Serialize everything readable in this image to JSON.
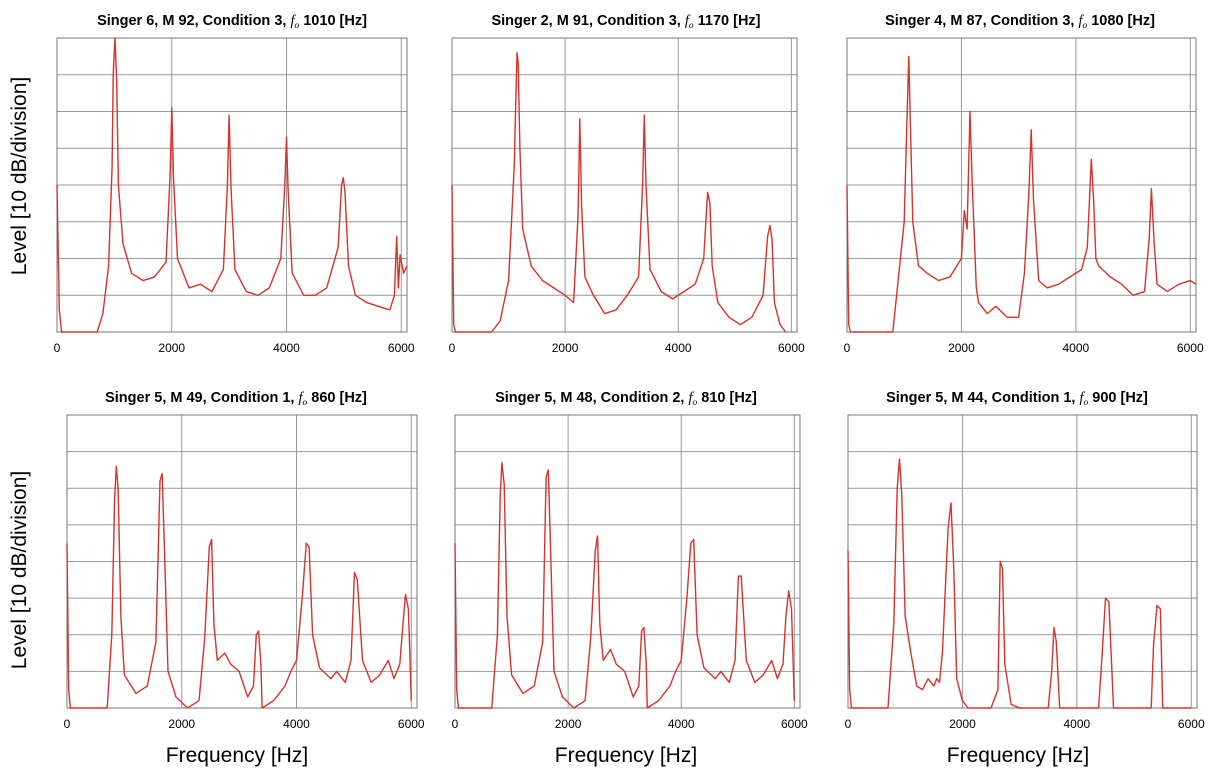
{
  "figure": {
    "ylabel": "Level [10 dB/division]",
    "xlabel": "Frequency [Hz]",
    "line_color": "#d9312b",
    "grid_color": "#999999"
  },
  "chart_data": [
    {
      "type": "line",
      "title": "Singer 6, M 92, Condition 3,",
      "title_f": "fo",
      "title_suffix": " 1010 [Hz]",
      "xlabel": "",
      "ylabel": "Level [10 dB/division]",
      "xlim": [
        0,
        6100
      ],
      "xticks": [
        0,
        2000,
        4000,
        6000
      ],
      "ylim": [
        0,
        8
      ],
      "grid": true,
      "series": [
        {
          "x": [
            0,
            40,
            80,
            700,
            800,
            900,
            960,
            980,
            1010,
            1040,
            1070,
            1150,
            1300,
            1500,
            1700,
            1900,
            1970,
            2000,
            2030,
            2100,
            2300,
            2500,
            2700,
            2900,
            2970,
            3000,
            3030,
            3100,
            3300,
            3500,
            3700,
            3900,
            3970,
            4000,
            4030,
            4100,
            4300,
            4500,
            4700,
            4900,
            4960,
            4990,
            5020,
            5080,
            5200,
            5400,
            5600,
            5800,
            5880,
            5920,
            5950,
            5980,
            6040,
            6100
          ],
          "y": [
            4.0,
            0.6,
            0.0,
            0.0,
            0.5,
            1.8,
            4.5,
            7.0,
            8.0,
            6.8,
            4.0,
            2.4,
            1.6,
            1.4,
            1.5,
            1.9,
            4.2,
            6.1,
            4.2,
            2.0,
            1.2,
            1.3,
            1.1,
            1.7,
            4.0,
            5.9,
            4.0,
            1.7,
            1.1,
            1.0,
            1.2,
            2.0,
            4.0,
            5.3,
            3.8,
            1.6,
            1.0,
            1.0,
            1.2,
            2.3,
            4.0,
            4.2,
            3.8,
            1.8,
            1.0,
            0.8,
            0.7,
            0.6,
            1.0,
            2.6,
            1.2,
            2.1,
            1.6,
            1.8
          ]
        }
      ]
    },
    {
      "type": "line",
      "title": "Singer 2, M 91, Condition 3,",
      "title_f": "fo",
      "title_suffix": " 1170 [Hz]",
      "xlabel": "",
      "ylabel": "Level [10 dB/division]",
      "xlim": [
        0,
        6100
      ],
      "xticks": [
        0,
        2000,
        4000,
        6000
      ],
      "ylim": [
        0,
        8
      ],
      "grid": true,
      "series": [
        {
          "x": [
            0,
            30,
            60,
            700,
            850,
            1000,
            1100,
            1150,
            1170,
            1200,
            1250,
            1400,
            1600,
            1800,
            2000,
            2150,
            2230,
            2260,
            2290,
            2350,
            2500,
            2700,
            2900,
            3100,
            3300,
            3370,
            3400,
            3430,
            3500,
            3700,
            3900,
            4100,
            4300,
            4450,
            4520,
            4560,
            4600,
            4700,
            4900,
            5100,
            5300,
            5500,
            5580,
            5620,
            5660,
            5700,
            5800,
            5900
          ],
          "y": [
            4.0,
            0.2,
            0.0,
            0.0,
            0.3,
            1.4,
            4.5,
            7.6,
            7.3,
            5.0,
            2.8,
            1.8,
            1.4,
            1.2,
            1.0,
            0.8,
            3.2,
            5.8,
            3.5,
            1.5,
            1.0,
            0.5,
            0.6,
            1.0,
            1.5,
            4.0,
            5.9,
            4.0,
            1.7,
            1.1,
            0.9,
            1.1,
            1.3,
            2.0,
            3.8,
            3.5,
            1.8,
            0.8,
            0.4,
            0.2,
            0.4,
            1.0,
            2.6,
            2.9,
            2.5,
            0.8,
            0.2,
            0.0
          ]
        }
      ]
    },
    {
      "type": "line",
      "title": "Singer 4, M 87, Condition 3,",
      "title_f": "fo",
      "title_suffix": " 1080 [Hz]",
      "xlabel": "",
      "ylabel": "Level [10 dB/division]",
      "xlim": [
        0,
        6100
      ],
      "xticks": [
        0,
        2000,
        4000,
        6000
      ],
      "ylim": [
        0,
        8
      ],
      "grid": true,
      "series": [
        {
          "x": [
            0,
            30,
            60,
            800,
            900,
            1000,
            1060,
            1080,
            1110,
            1150,
            1250,
            1400,
            1600,
            1800,
            2000,
            2050,
            2100,
            2150,
            2190,
            2260,
            2300,
            2450,
            2600,
            2800,
            3000,
            3100,
            3180,
            3220,
            3260,
            3350,
            3500,
            3700,
            3900,
            4100,
            4200,
            4270,
            4310,
            4350,
            4400,
            4600,
            4800,
            5000,
            5200,
            5280,
            5320,
            5370,
            5420,
            5600,
            5800,
            6000,
            6100
          ],
          "y": [
            4.0,
            0.2,
            0.0,
            0.0,
            1.5,
            3.0,
            6.4,
            7.5,
            5.5,
            3.0,
            1.8,
            1.6,
            1.4,
            1.5,
            2.0,
            3.3,
            2.8,
            6.0,
            4.0,
            1.2,
            0.8,
            0.5,
            0.7,
            0.4,
            0.4,
            1.6,
            3.8,
            5.5,
            3.6,
            1.4,
            1.2,
            1.3,
            1.5,
            1.7,
            2.3,
            4.7,
            3.6,
            2.0,
            1.8,
            1.5,
            1.3,
            1.0,
            1.1,
            2.5,
            3.9,
            2.4,
            1.3,
            1.1,
            1.3,
            1.4,
            1.3
          ]
        }
      ]
    },
    {
      "type": "line",
      "title": "Singer 5, M 49, Condition 1,",
      "title_f": "fo",
      "title_suffix": " 860 [Hz]",
      "xlabel": "Frequency [Hz]",
      "ylabel": "Level [10 dB/division]",
      "xlim": [
        0,
        6100
      ],
      "xticks": [
        0,
        2000,
        4000,
        6000
      ],
      "ylim": [
        0,
        8
      ],
      "grid": true,
      "series": [
        {
          "x": [
            0,
            30,
            60,
            700,
            780,
            830,
            860,
            890,
            940,
            1000,
            1200,
            1400,
            1550,
            1620,
            1660,
            1700,
            1760,
            1900,
            2100,
            2300,
            2400,
            2480,
            2520,
            2560,
            2620,
            2750,
            2850,
            3000,
            3150,
            3250,
            3300,
            3340,
            3380,
            3400,
            3600,
            3800,
            3900,
            4000,
            4100,
            4170,
            4220,
            4280,
            4400,
            4600,
            4700,
            4850,
            4950,
            5010,
            5060,
            5150,
            5300,
            5450,
            5600,
            5700,
            5800,
            5850,
            5900,
            5950,
            6000
          ],
          "y": [
            4.5,
            0.5,
            0.0,
            0.0,
            2.0,
            5.7,
            6.6,
            6.0,
            2.5,
            0.9,
            0.4,
            0.6,
            1.8,
            6.2,
            6.4,
            4.3,
            1.0,
            0.3,
            0.0,
            0.2,
            1.9,
            4.4,
            4.6,
            2.3,
            1.3,
            1.5,
            1.2,
            1.0,
            0.3,
            0.6,
            2.0,
            2.1,
            1.2,
            0.0,
            0.2,
            0.6,
            1.0,
            1.3,
            3.0,
            4.5,
            4.4,
            2.0,
            1.1,
            0.8,
            1.0,
            0.7,
            1.3,
            3.7,
            3.5,
            1.3,
            0.7,
            0.9,
            1.3,
            0.8,
            1.2,
            2.2,
            3.1,
            2.7,
            0.2
          ]
        }
      ]
    },
    {
      "type": "line",
      "title": "Singer 5, M 48, Condition 2,",
      "title_f": "fo",
      "title_suffix": " 810 [Hz]",
      "xlabel": "Frequency [Hz]",
      "ylabel": "Level [10 dB/division]",
      "xlim": [
        0,
        6100
      ],
      "xticks": [
        0,
        2000,
        4000,
        6000
      ],
      "ylim": [
        0,
        8
      ],
      "grid": true,
      "series": [
        {
          "x": [
            0,
            30,
            60,
            650,
            750,
            800,
            830,
            870,
            920,
            1000,
            1200,
            1400,
            1550,
            1610,
            1650,
            1690,
            1750,
            1900,
            2100,
            2300,
            2400,
            2480,
            2520,
            2560,
            2620,
            2750,
            2850,
            3000,
            3150,
            3250,
            3300,
            3340,
            3380,
            3400,
            3600,
            3800,
            3900,
            4000,
            4100,
            4170,
            4220,
            4280,
            4400,
            4600,
            4700,
            4850,
            4950,
            5010,
            5060,
            5150,
            5300,
            5450,
            5600,
            5700,
            5800,
            5850,
            5900,
            5950,
            6000
          ],
          "y": [
            4.5,
            0.5,
            0.0,
            0.0,
            2.0,
            5.8,
            6.7,
            6.1,
            2.5,
            0.9,
            0.4,
            0.6,
            1.8,
            6.3,
            6.5,
            4.3,
            1.0,
            0.3,
            0.0,
            0.2,
            1.9,
            4.3,
            4.7,
            2.3,
            1.3,
            1.6,
            1.2,
            1.0,
            0.3,
            0.6,
            2.1,
            2.2,
            1.2,
            0.0,
            0.2,
            0.6,
            1.0,
            1.3,
            3.0,
            4.5,
            4.6,
            2.0,
            1.1,
            0.8,
            1.0,
            0.7,
            1.3,
            3.6,
            3.6,
            1.3,
            0.7,
            0.9,
            1.3,
            0.8,
            1.2,
            2.5,
            3.2,
            2.7,
            0.2
          ]
        }
      ]
    },
    {
      "type": "line",
      "title": "Singer 5, M 44, Condition 1,",
      "title_f": "fo",
      "title_suffix": " 900 [Hz]",
      "xlabel": "Frequency [Hz]",
      "ylabel": "Level [10 dB/division]",
      "xlim": [
        0,
        6100
      ],
      "xticks": [
        0,
        2000,
        4000,
        6000
      ],
      "ylim": [
        0,
        8
      ],
      "grid": true,
      "series": [
        {
          "x": [
            0,
            30,
            60,
            700,
            800,
            860,
            900,
            940,
            1000,
            1100,
            1200,
            1300,
            1400,
            1500,
            1550,
            1600,
            1650,
            1750,
            1800,
            1850,
            1900,
            2000,
            2100,
            2500,
            2620,
            2660,
            2700,
            2740,
            2850,
            3000,
            3200,
            3500,
            3560,
            3600,
            3640,
            3700,
            4000,
            4380,
            4440,
            4500,
            4560,
            4640,
            5000,
            5300,
            5340,
            5400,
            5460,
            5500,
            5800,
            6000
          ],
          "y": [
            4.3,
            0.5,
            0.0,
            0.0,
            2.3,
            6.0,
            6.8,
            5.8,
            2.5,
            1.5,
            0.6,
            0.5,
            0.8,
            0.6,
            0.8,
            0.7,
            1.5,
            4.9,
            5.6,
            3.8,
            0.8,
            0.2,
            0.0,
            0.0,
            0.5,
            4.0,
            3.8,
            1.2,
            0.1,
            0.0,
            0.0,
            0.0,
            1.0,
            2.2,
            1.8,
            0.0,
            0.0,
            0.0,
            1.4,
            3.0,
            2.9,
            0.0,
            0.0,
            0.0,
            1.7,
            2.8,
            2.7,
            0.0,
            0.0,
            0.0
          ]
        }
      ]
    }
  ]
}
